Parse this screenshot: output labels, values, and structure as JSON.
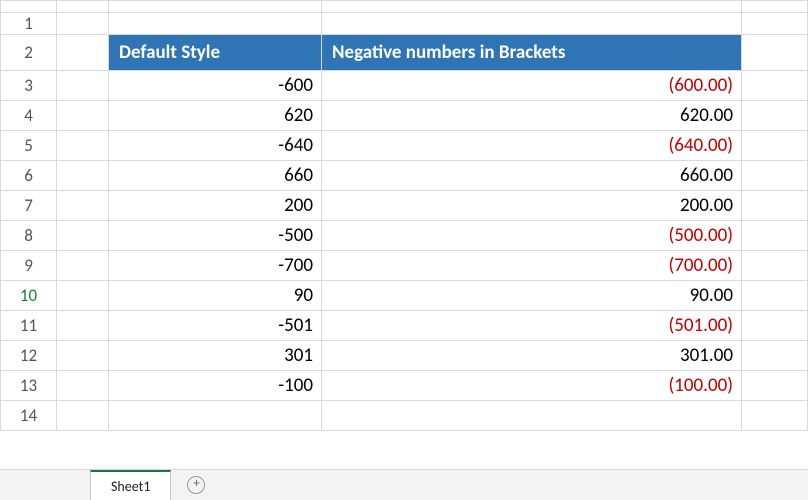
{
  "columns": {
    "b_header": "Default Style",
    "c_header": "Negative numbers in Brackets"
  },
  "active_row_index": 10,
  "rows": [
    {
      "n": 1,
      "b": "",
      "c": "",
      "neg": false
    },
    {
      "n": 2,
      "b": "__HDR__",
      "c": "__HDR__",
      "neg": false
    },
    {
      "n": 3,
      "b": "-600",
      "c": "(600.00)",
      "neg": true
    },
    {
      "n": 4,
      "b": "620",
      "c": "620.00",
      "neg": false
    },
    {
      "n": 5,
      "b": "-640",
      "c": "(640.00)",
      "neg": true
    },
    {
      "n": 6,
      "b": "660",
      "c": "660.00",
      "neg": false
    },
    {
      "n": 7,
      "b": "200",
      "c": "200.00",
      "neg": false
    },
    {
      "n": 8,
      "b": "-500",
      "c": "(500.00)",
      "neg": true
    },
    {
      "n": 9,
      "b": "-700",
      "c": "(700.00)",
      "neg": true
    },
    {
      "n": 10,
      "b": "90",
      "c": "90.00",
      "neg": false
    },
    {
      "n": 11,
      "b": "-501",
      "c": "(501.00)",
      "neg": true
    },
    {
      "n": 12,
      "b": "301",
      "c": "301.00",
      "neg": false
    },
    {
      "n": 13,
      "b": "-100",
      "c": "(100.00)",
      "neg": true
    },
    {
      "n": 14,
      "b": "",
      "c": "",
      "neg": false
    }
  ],
  "tabs": {
    "sheet1": "Sheet1"
  },
  "style": {
    "header_bg": "#2f75b5",
    "header_fg": "#ffffff",
    "negative_color": "#c00000",
    "gridline_color": "#d9d9d9",
    "tab_active_border": "#217346"
  }
}
